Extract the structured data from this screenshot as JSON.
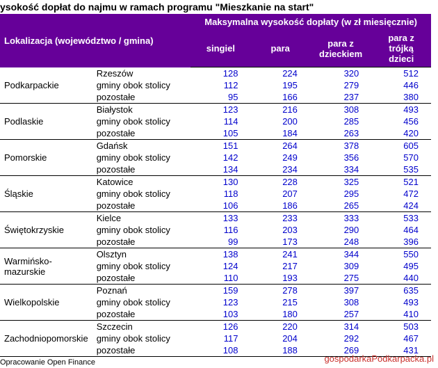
{
  "title": "ysokość dopłat do najmu w ramach programu \"Mieszkanie na start\"",
  "header": {
    "location": "Lokalizacja (województwo / gmina)",
    "top": "Maksymalna wysokość dopłaty (w zł miesięcznie)",
    "cols": [
      "singiel",
      "para",
      "para z dzieckiem",
      "para z trójką dzieci"
    ]
  },
  "regions": [
    {
      "name": "Podkarpackie",
      "rows": [
        {
          "sub": "Rzeszów",
          "v": [
            128,
            224,
            320,
            512
          ]
        },
        {
          "sub": "gminy obok stolicy",
          "v": [
            112,
            195,
            279,
            446
          ]
        },
        {
          "sub": "pozostałe",
          "v": [
            95,
            166,
            237,
            380
          ]
        }
      ]
    },
    {
      "name": "Podlaskie",
      "rows": [
        {
          "sub": "Białystok",
          "v": [
            123,
            216,
            308,
            493
          ]
        },
        {
          "sub": "gminy obok stolicy",
          "v": [
            114,
            200,
            285,
            456
          ]
        },
        {
          "sub": "pozostałe",
          "v": [
            105,
            184,
            263,
            420
          ]
        }
      ]
    },
    {
      "name": "Pomorskie",
      "rows": [
        {
          "sub": "Gdańsk",
          "v": [
            151,
            264,
            378,
            605
          ]
        },
        {
          "sub": "gminy obok stolicy",
          "v": [
            142,
            249,
            356,
            570
          ]
        },
        {
          "sub": "pozostałe",
          "v": [
            134,
            234,
            334,
            535
          ]
        }
      ]
    },
    {
      "name": "Śląskie",
      "rows": [
        {
          "sub": "Katowice",
          "v": [
            130,
            228,
            325,
            521
          ]
        },
        {
          "sub": "gminy obok stolicy",
          "v": [
            118,
            207,
            295,
            472
          ]
        },
        {
          "sub": "pozostałe",
          "v": [
            106,
            186,
            265,
            424
          ]
        }
      ]
    },
    {
      "name": "Świętokrzyskie",
      "rows": [
        {
          "sub": "Kielce",
          "v": [
            133,
            233,
            333,
            533
          ]
        },
        {
          "sub": "gminy obok stolicy",
          "v": [
            116,
            203,
            290,
            464
          ]
        },
        {
          "sub": "pozostałe",
          "v": [
            99,
            173,
            248,
            396
          ]
        }
      ]
    },
    {
      "name": "Warmińsko-mazurskie",
      "rows": [
        {
          "sub": "Olsztyn",
          "v": [
            138,
            241,
            344,
            550
          ]
        },
        {
          "sub": "gminy obok stolicy",
          "v": [
            124,
            217,
            309,
            495
          ]
        },
        {
          "sub": "pozostałe",
          "v": [
            110,
            193,
            275,
            440
          ]
        }
      ]
    },
    {
      "name": "Wielkopolskie",
      "rows": [
        {
          "sub": "Poznań",
          "v": [
            159,
            278,
            397,
            635
          ]
        },
        {
          "sub": "gminy obok stolicy",
          "v": [
            123,
            215,
            308,
            493
          ]
        },
        {
          "sub": "pozostałe",
          "v": [
            103,
            180,
            257,
            410
          ]
        }
      ]
    },
    {
      "name": "Zachodniopomorskie",
      "rows": [
        {
          "sub": "Szczecin",
          "v": [
            126,
            220,
            314,
            503
          ]
        },
        {
          "sub": "gminy obok stolicy",
          "v": [
            117,
            204,
            292,
            467
          ]
        },
        {
          "sub": "pozostałe",
          "v": [
            108,
            188,
            269,
            431
          ]
        }
      ]
    }
  ],
  "footer": "Opracowanie Open Finance",
  "watermark": "gospodarkaPodkarpacka.pl",
  "colors": {
    "header_bg": "#660099",
    "header_fg": "#ffffff",
    "value_fg": "#0000cc",
    "watermark_fg": "#c9302c"
  }
}
